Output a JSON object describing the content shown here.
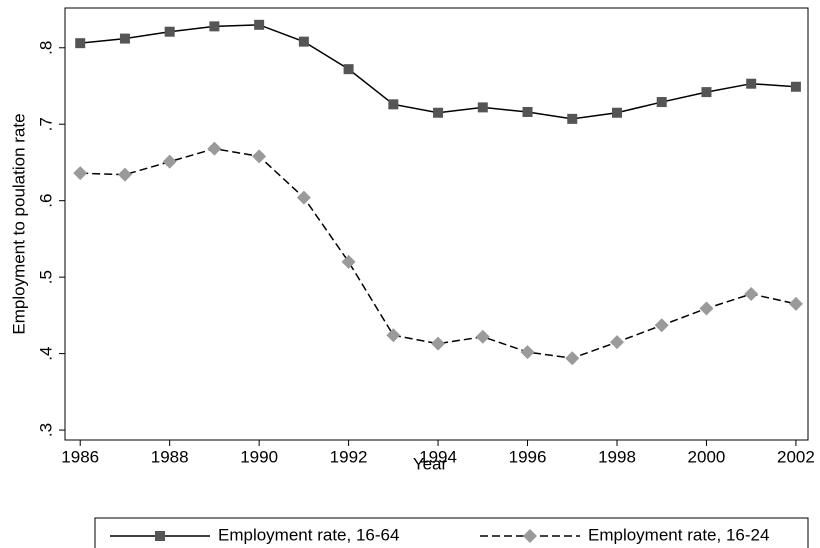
{
  "chart_data": {
    "type": "line",
    "x": [
      1986,
      1987,
      1988,
      1989,
      1990,
      1991,
      1992,
      1993,
      1994,
      1995,
      1996,
      1997,
      1998,
      1999,
      2000,
      2001,
      2002
    ],
    "x_label": "Year",
    "y_label": "Employment to poulation rate",
    "series": [
      {
        "name": "Employment rate, 16-64",
        "color": "#555555",
        "marker": "square",
        "dashed": false,
        "values": [
          0.806,
          0.812,
          0.821,
          0.828,
          0.83,
          0.808,
          0.772,
          0.726,
          0.715,
          0.722,
          0.716,
          0.707,
          0.715,
          0.729,
          0.742,
          0.753,
          0.749
        ]
      },
      {
        "name": "Employment rate, 16-24",
        "color": "#9a9a9a",
        "marker": "diamond",
        "dashed": true,
        "values": [
          0.636,
          0.634,
          0.651,
          0.668,
          0.658,
          0.604,
          0.52,
          0.424,
          0.413,
          0.422,
          0.402,
          0.394,
          0.415,
          0.437,
          0.459,
          0.478,
          0.465
        ]
      }
    ],
    "xlim": [
      1985.66,
      2002.27
    ],
    "ylim": [
      0.287,
      0.852
    ],
    "xticks": [
      1986,
      1988,
      1990,
      1992,
      1994,
      1996,
      1998,
      2000,
      2002
    ],
    "yticks": [
      {
        "value": 0.3,
        "label": ".3"
      },
      {
        "value": 0.4,
        "label": ".4"
      },
      {
        "value": 0.5,
        "label": ".5"
      },
      {
        "value": 0.6,
        "label": ".6"
      },
      {
        "value": 0.7,
        "label": ".7"
      },
      {
        "value": 0.8,
        "label": ".8"
      }
    ],
    "legend": "bottom"
  }
}
